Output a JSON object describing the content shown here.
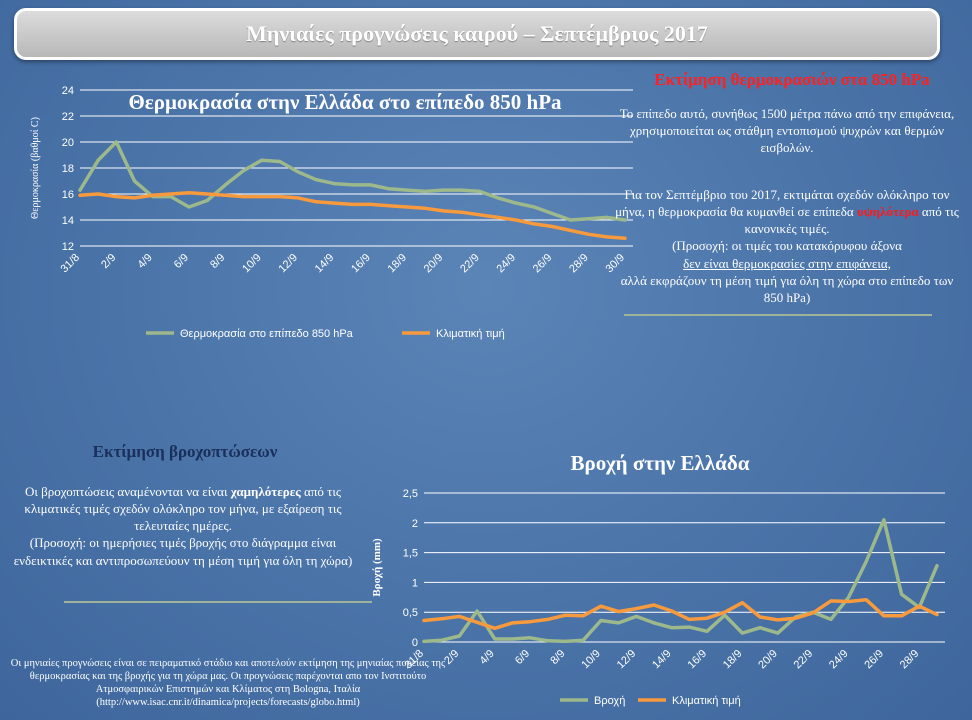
{
  "banner": {
    "title": "Μηνιαίες προγνώσεις καιρού – Σεπτέμβριος 2017"
  },
  "temperature_section": {
    "heading": "Εκτίμηση θερμοκρασιών στα 850 hPa",
    "para1": "Το επίπεδο αυτό, συνήθως 1500 μέτρα πάνω από την επιφάνεια, χρησιμοποιείται ως στάθμη εντοπισμού ψυχρών και θερμών εισβολών.",
    "para2_a": "Για τον Σεπτέμβριο του 2017, εκτιμάται σχεδόν ολόκληρο τον μήνα, η θερμοκρασία θα κυμανθεί σε επίπεδα",
    "para2_red": "υψηλότερα",
    "para2_b": "από τις κανονικές τιμές.",
    "para2_c": "(Προσοχή: οι τιμές του κατακόρυφου άξονα",
    "para2_u": "δεν είναι θερμοκρασίες στην επιφάνεια,",
    "para2_d": "αλλά εκφράζουν τη μέση τιμή για όλη τη χώρα στο επίπεδο των 850 hPa)"
  },
  "rain_section": {
    "heading": "Εκτίμηση βροχοπτώσεων",
    "para_a": "Οι βροχοπτώσεις αναμένονται να είναι",
    "para_bold": "χαμηλότερες",
    "para_b": "από τις κλιματικές τιμές σχεδόν ολόκληρο τον μήνα, με εξαίρεση τις τελευταίες ημέρες.",
    "para_c": "(Προσοχή: οι ημερήσιες τιμές βροχής στο διάγραμμα είναι ενδεικτικές και αντιπροσωπεύουν τη μέση τιμή για όλη τη χώρα)"
  },
  "footnote": "Οι μηνιαίες προγνώσεις είναι σε πειραματικό στάδιο και αποτελούν εκτίμηση της μηνιαίας πορείας της θερμοκρασίας και της βροχής για τη χώρα μας. Οι προγνώσεις παρέχονται απο τον Ινστιτούτο Ατμοσφαιρικών Επιστημών και Κλίματος στη Bologna, Ιταλία (http://www.isac.cnr.it/dinamica/projects/forecasts/globo.html)",
  "colors": {
    "forecast": "#9db88b",
    "climate": "#f79a3e",
    "grid": "#ffffff"
  },
  "chart_data": [
    {
      "type": "line",
      "title": "Θερμοκρασία στην Ελλάδα στο επίπεδο 850 hPa",
      "ylabel": "Θερμοκρασία (βαθμοί C)",
      "xlabel": "",
      "ylim": [
        12,
        24
      ],
      "yticks": [
        12,
        14,
        16,
        18,
        20,
        22,
        24
      ],
      "x": [
        "31/8",
        "1/9",
        "2/9",
        "3/9",
        "4/9",
        "5/9",
        "6/9",
        "7/9",
        "8/9",
        "9/9",
        "10/9",
        "11/9",
        "12/9",
        "13/9",
        "14/9",
        "15/9",
        "16/9",
        "17/9",
        "18/9",
        "19/9",
        "20/9",
        "21/9",
        "22/9",
        "23/9",
        "24/9",
        "25/9",
        "26/9",
        "27/9",
        "28/9",
        "29/9",
        "30/9"
      ],
      "xtick_labels": [
        "31/8",
        "2/9",
        "4/9",
        "6/9",
        "8/9",
        "10/9",
        "12/9",
        "14/9",
        "16/9",
        "18/9",
        "20/9",
        "22/9",
        "24/9",
        "26/9",
        "28/9",
        "30/9"
      ],
      "legend": "bottom",
      "grid": true,
      "series": [
        {
          "name": "Θερμοκρασία στο επίπεδο 850 hPa",
          "values": [
            16.3,
            18.6,
            20.0,
            17.0,
            15.8,
            15.8,
            15.0,
            15.5,
            16.7,
            17.8,
            18.6,
            18.5,
            17.7,
            17.1,
            16.8,
            16.7,
            16.7,
            16.4,
            16.3,
            16.2,
            16.3,
            16.3,
            16.2,
            15.7,
            15.3,
            15.0,
            14.5,
            14.0,
            14.1,
            14.2,
            14.0
          ]
        },
        {
          "name": "Κλιματική τιμή",
          "values": [
            15.9,
            16.0,
            15.8,
            15.7,
            15.9,
            16.0,
            16.1,
            16.0,
            15.9,
            15.8,
            15.8,
            15.8,
            15.7,
            15.4,
            15.3,
            15.2,
            15.2,
            15.1,
            15.0,
            14.9,
            14.7,
            14.6,
            14.4,
            14.2,
            14.0,
            13.7,
            13.5,
            13.2,
            12.9,
            12.7,
            12.6
          ]
        }
      ]
    },
    {
      "type": "line",
      "title": "Βροχή στην Ελλάδα",
      "ylabel": "Βροχή (mm)",
      "xlabel": "",
      "ylim": [
        0,
        2.5
      ],
      "yticks": [
        0,
        0.5,
        1,
        1.5,
        2,
        2.5
      ],
      "ytick_labels": [
        "0",
        "0,5",
        "1",
        "1,5",
        "2",
        "2,5"
      ],
      "x": [
        "31/8",
        "1/9",
        "2/9",
        "3/9",
        "4/9",
        "5/9",
        "6/9",
        "7/9",
        "8/9",
        "9/9",
        "10/9",
        "11/9",
        "12/9",
        "13/9",
        "14/9",
        "15/9",
        "16/9",
        "17/9",
        "18/9",
        "19/9",
        "20/9",
        "21/9",
        "22/9",
        "23/9",
        "24/9",
        "25/9",
        "26/9",
        "27/9",
        "28/9",
        "29/9"
      ],
      "xtick_labels": [
        "31/8",
        "2/9",
        "4/9",
        "6/9",
        "8/9",
        "10/9",
        "12/9",
        "14/9",
        "16/9",
        "18/9",
        "20/9",
        "22/9",
        "24/9",
        "26/9",
        "28/9"
      ],
      "legend": "bottom",
      "grid": true,
      "series": [
        {
          "name": "Βροχή",
          "values": [
            0.01,
            0.03,
            0.1,
            0.52,
            0.05,
            0.05,
            0.07,
            0.02,
            0.01,
            0.03,
            0.36,
            0.32,
            0.43,
            0.32,
            0.24,
            0.25,
            0.18,
            0.45,
            0.15,
            0.24,
            0.15,
            0.42,
            0.5,
            0.38,
            0.75,
            1.35,
            2.05,
            0.8,
            0.58,
            1.28
          ]
        },
        {
          "name": "Κλιματική τιμή",
          "values": [
            0.36,
            0.39,
            0.43,
            0.33,
            0.23,
            0.32,
            0.34,
            0.38,
            0.45,
            0.44,
            0.6,
            0.51,
            0.56,
            0.62,
            0.52,
            0.38,
            0.4,
            0.5,
            0.66,
            0.42,
            0.37,
            0.4,
            0.49,
            0.69,
            0.68,
            0.71,
            0.44,
            0.44,
            0.6,
            0.46
          ]
        }
      ]
    }
  ]
}
